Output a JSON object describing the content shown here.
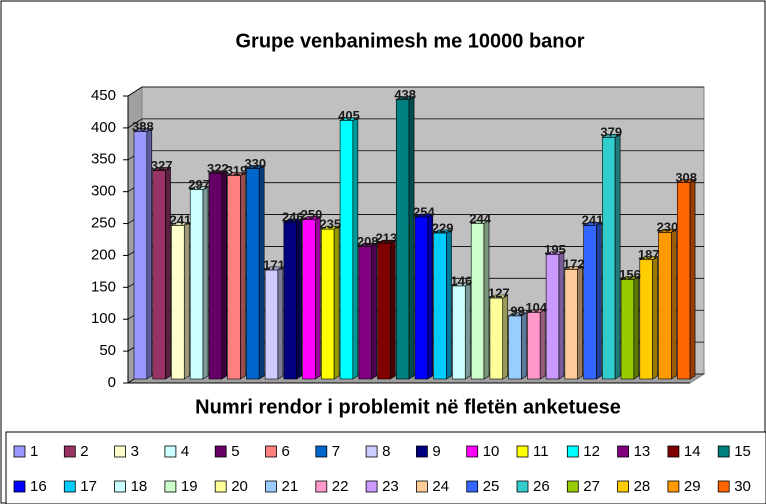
{
  "chart_data": {
    "type": "bar3d",
    "title": "Grupe venbanimesh me 10000 banor",
    "x_label": "Numri rendor i problemit në fletën anketuese",
    "categories": [
      "1",
      "2",
      "3",
      "4",
      "5",
      "6",
      "7",
      "8",
      "9",
      "10",
      "11",
      "12",
      "13",
      "14",
      "15",
      "16",
      "17",
      "18",
      "19",
      "20",
      "21",
      "22",
      "23",
      "24",
      "25",
      "26",
      "27",
      "28",
      "29",
      "30"
    ],
    "values": [
      388,
      327,
      241,
      297,
      322,
      319,
      330,
      171,
      246,
      250,
      235,
      405,
      208,
      213,
      438,
      254,
      229,
      146,
      244,
      127,
      99,
      104,
      195,
      172,
      241,
      379,
      156,
      187,
      230,
      308
    ],
    "colors": [
      "#9999ff",
      "#993366",
      "#ffffcc",
      "#ccffff",
      "#660066",
      "#ff8080",
      "#0066cc",
      "#ccccff",
      "#000080",
      "#ff00ff",
      "#ffff00",
      "#00ffff",
      "#800080",
      "#800000",
      "#008080",
      "#0000ff",
      "#00ccff",
      "#ccffff",
      "#ccffcc",
      "#ffff99",
      "#99ccff",
      "#ff99cc",
      "#cc99ff",
      "#ffcc99",
      "#3366ff",
      "#33cccc",
      "#99cc00",
      "#ffcc00",
      "#ff9900",
      "#ff6600"
    ],
    "ylim": [
      0,
      450
    ],
    "yticks": [
      0,
      50,
      100,
      150,
      200,
      250,
      300,
      350,
      400,
      450
    ],
    "grid": true
  }
}
